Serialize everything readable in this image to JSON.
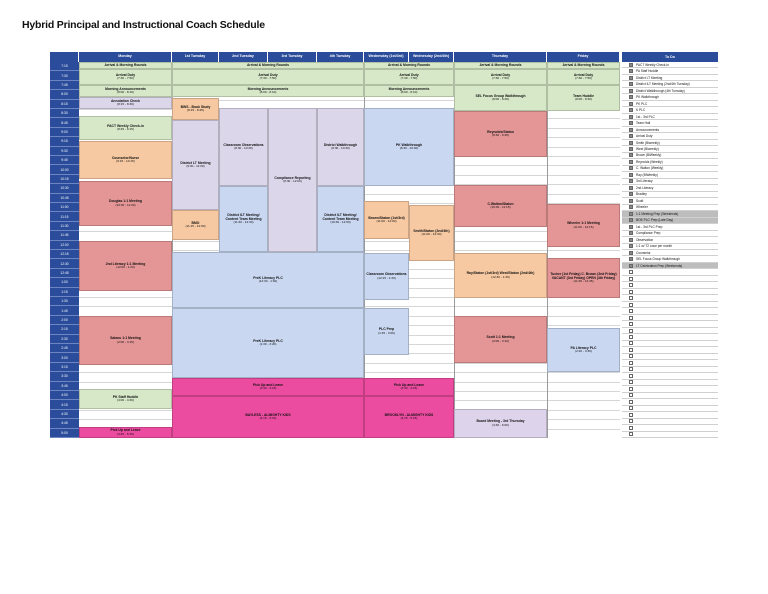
{
  "title": "Hybrid Principal and Instructional Coach Schedule",
  "headers": {
    "monday": "Monday",
    "tue1": "1st Tuesday",
    "tue2": "2nd Tuesday",
    "tue3": "3rd Tuesday",
    "tue4": "4th Tuesday",
    "wed1": "Wednesday (1st/3rd)",
    "wed2": "Wednesday (2nd/4th)",
    "thursday": "Thursday",
    "friday": "Friday"
  },
  "times": [
    "7:15",
    "7:30",
    "7:45",
    "8:00",
    "8:15",
    "8:30",
    "8:45",
    "9:00",
    "9:15",
    "9:30",
    "9:45",
    "10:00",
    "10:15",
    "10:30",
    "10:45",
    "11:00",
    "11:15",
    "11:30",
    "11:45",
    "12:00",
    "12:15",
    "12:30",
    "12:45",
    "1:00",
    "1:15",
    "1:30",
    "1:45",
    "2:00",
    "2:15",
    "2:30",
    "2:45",
    "3:00",
    "3:15",
    "3:30",
    "3:45",
    "4:00",
    "4:15",
    "4:30",
    "4:45",
    "5:00"
  ],
  "blocks": {
    "mon_arrival_rounds": {
      "t": "Arrival & Morning Rounds",
      "s": ""
    },
    "mon_arrival_duty": {
      "t": "Arrival Duty",
      "s": "(7:30 - 7:50)"
    },
    "mon_morning_ann": {
      "t": "Morning Announcements",
      "s": "(8:00 - 8:10)"
    },
    "mon_annotation": {
      "t": "Annotation Check",
      "s": "(8:15 - 8:30)"
    },
    "mon_plct": {
      "t": "PACT Weekly Check-in",
      "s": "(8:45 - 9:15)"
    },
    "mon_counselor": {
      "t": "Counselor/Nurse",
      "s": "(9:15 - 10:15)"
    },
    "mon_douglas": {
      "t": "Douglas 1:1 Meeting",
      "s": "(10:30 - 11:30)"
    },
    "mon_2nd_literacy": {
      "t": "2nd Literacy 1:1 Meeting",
      "s": "(12:00 - 1:20)"
    },
    "mon_salanu": {
      "t": "Salanu 1:1 Meeting",
      "s": "(2:00 - 3:15)"
    },
    "mon_pk_staff": {
      "t": "PK Staff Huddle",
      "s": "(4:00 - 4:30)"
    },
    "mon_pickup": {
      "t": "Pick Up and Leave",
      "s": "(4:45 - 5:15)"
    },
    "tue_arrival_rounds": {
      "t": "Arrival & Morning Rounds",
      "s": ""
    },
    "tue_arrival_duty": {
      "t": "Arrival Duty",
      "s": "(7:30 - 7:50)"
    },
    "tue_morning_ann": {
      "t": "Morning Announcements",
      "s": "(8:00 - 8:10)"
    },
    "tue_bws": {
      "t": "BWS - Book Study",
      "s": "(8:15 - 8:45)"
    },
    "tue_district_lt": {
      "t": "District LT Meeting",
      "s": "(9:00 - 11:00)"
    },
    "tue_bmo": {
      "t": "BMO",
      "s": "(11:15 - 12:00)"
    },
    "tue_class_obs": {
      "t": "Classroom Observations",
      "s": "(8:30 - 10:30)"
    },
    "tue_dist_ilt": {
      "t": "District ILT Meeting/ Content Team Meeting",
      "s": "(11:30 - 12:30)"
    },
    "tue_compliance": {
      "t": "Compliance Reporting",
      "s": "(8:30 - 12:00)"
    },
    "tue_dist_walk": {
      "t": "District Walkthrough",
      "s": "(8:30 - 10:30)"
    },
    "tue_dist_ilt2": {
      "t": "District ILT Meeting/ Content Team Meeting",
      "s": "(10:30 - 12:00)"
    },
    "tue_prek_plc1": {
      "t": "PreK Literacy PLC",
      "s": "(12:30 - 1:30)"
    },
    "tue_prek_plc2": {
      "t": "PreK Literacy PLC",
      "s": "(1:30 - 3:20)"
    },
    "tue_pickup": {
      "t": "Pick Up and Leave",
      "s": "(3:40 - 4:15)"
    },
    "tue_bayless": {
      "t": "BAYLESS - ALMIGHTY KIDS",
      "s": "(4:15 - 5:15)"
    },
    "wed_arrival_rounds": {
      "t": "Arrival & Morning Rounds",
      "s": ""
    },
    "wed_arrival_duty": {
      "t": "Arrival Duty",
      "s": "(7:30 - 7:50)"
    },
    "wed_morning_ann": {
      "t": "Morning Announcements",
      "s": "(8:00 - 8:10)"
    },
    "wed_pk_walk": {
      "t": "PK Walkthrough",
      "s": "(8:30 - 10:30)"
    },
    "wed_brown1": {
      "t": "Brown/Staton (1st/3rd)",
      "s": "(11:00 - 12:00)"
    },
    "wed_smith": {
      "t": "Smith/Staton (2nd/4th)",
      "s": "(11:00 - 12:30)"
    },
    "wed_class_obs": {
      "t": "Classroom Observations",
      "s": "(12:15 - 1:30)"
    },
    "wed_plc_prep": {
      "t": "PLC Prep",
      "s": "(1:45 - 3:00)"
    },
    "wed_pickup": {
      "t": "Pick Up and Leave",
      "s": "(3:40 - 4:15)"
    },
    "wed_brooklyn": {
      "t": "BROOKLYN - ALMIGHTY KIDS",
      "s": "(4:15 - 5:15)"
    },
    "thu_arrival_rounds": {
      "t": "Arrival & Morning Rounds",
      "s": ""
    },
    "thu_arrival_duty": {
      "t": "Arrival Duty",
      "s": "(7:30 - 7:50)"
    },
    "thu_sel_focus": {
      "t": "SEL Focus Group Walkthrough",
      "s": "(8:00 - 8:30)"
    },
    "thu_reynolds": {
      "t": "Reynolds/Staton",
      "s": "(8:30 - 9:45)"
    },
    "thu_c_walton": {
      "t": "C.Walton/Staton",
      "s": "(10:30 - 11:15)"
    },
    "thu_ray": {
      "t": "Ray/Staton (1st/3rd) West/Staton (2nd/4th)",
      "s": "(12:30 - 1:30)"
    },
    "thu_scott": {
      "t": "Scott 1:1 Meeting",
      "s": "(2:00 - 3:10)"
    },
    "thu_board": {
      "t": "Board Meeting - 3rd Thursday",
      "s": "(4:30 - 6:00)"
    },
    "fri_arrival_rounds": {
      "t": "Arrival & Morning Rounds",
      "s": ""
    },
    "fri_arrival_duty": {
      "t": "Arrival Duty",
      "s": "(7:30 - 7:50)"
    },
    "fri_team_huddle": {
      "t": "Team Huddle",
      "s": "(8:00 - 8:30)"
    },
    "fri_wheeler": {
      "t": "Wheeler 1:1 Meeting",
      "s": "(11:00 - 12:15)"
    },
    "fri_tucker": {
      "t": "Tucker (1st Friday) C. Brown (2nd Friday) VACANT (3rd Friday) OPEN (4th Friday)",
      "s": "(11:45 - 12:45)"
    },
    "fri_pa_literacy": {
      "t": "PA Literacy PLC",
      "s": "(2:20 - 3:30)"
    }
  },
  "todo": {
    "header": "To Do",
    "items": [
      {
        "text": "PACT Weekly Check-in",
        "done": true,
        "hl": false
      },
      {
        "text": "PA Staff Huddle",
        "done": true,
        "hl": false
      },
      {
        "text": "District LT Meeting",
        "done": true,
        "hl": false
      },
      {
        "text": "District ILT Meeting (2nd/4th Tuesday)",
        "done": true,
        "hl": false
      },
      {
        "text": "District Walkthrough (4th Tuesday)",
        "done": true,
        "hl": false
      },
      {
        "text": "PK Walkthrough",
        "done": true,
        "hl": false
      },
      {
        "text": "PK PLC",
        "done": true,
        "hl": false
      },
      {
        "text": "K PLC",
        "done": true,
        "hl": false
      },
      {
        "text": "1st - 3rd PLC",
        "done": true,
        "hl": false
      },
      {
        "text": "Team Hall",
        "done": true,
        "hl": false
      },
      {
        "text": "Announcements",
        "done": true,
        "hl": false
      },
      {
        "text": "Arrival Duty",
        "done": true,
        "hl": false
      },
      {
        "text": "Smith (Biweekly)",
        "done": true,
        "hl": false
      },
      {
        "text": "West (Biweekly)",
        "done": true,
        "hl": false
      },
      {
        "text": "Brown (BiWeekly)",
        "done": true,
        "hl": false
      },
      {
        "text": "Reynolds (Weekly)",
        "done": true,
        "hl": false
      },
      {
        "text": "C. Walton (Weekly)",
        "done": true,
        "hl": false
      },
      {
        "text": "Ray (BiWeekly)",
        "done": true,
        "hl": false
      },
      {
        "text": "3rd Literacy",
        "done": true,
        "hl": false
      },
      {
        "text": "2nd Literacy",
        "done": true,
        "hl": false
      },
      {
        "text": "Bradley",
        "done": true,
        "hl": false
      },
      {
        "text": "Scott",
        "done": true,
        "hl": false
      },
      {
        "text": "Wheeler",
        "done": true,
        "hl": false
      },
      {
        "text": "1:1 Meeting Prep (Weekends)",
        "done": true,
        "hl": true
      },
      {
        "text": "BOE PLC Prep (Late Day)",
        "done": true,
        "hl": true
      },
      {
        "text": "1st - 3rd PLC Prep",
        "done": true,
        "hl": false
      },
      {
        "text": "Compliance Prep",
        "done": true,
        "hl": false
      },
      {
        "text": "Observation",
        "done": true,
        "hl": false
      },
      {
        "text": "1:1 w/ T2 once per month",
        "done": true,
        "hl": false
      },
      {
        "text": "Counselor",
        "done": true,
        "hl": false
      },
      {
        "text": "SEL Focus Group Walkthrough",
        "done": true,
        "hl": false
      },
      {
        "text": "LT Celebration Prep (Weekends)",
        "done": true,
        "hl": true
      },
      {
        "text": "",
        "done": false,
        "hl": false
      },
      {
        "text": "",
        "done": false,
        "hl": false
      },
      {
        "text": "",
        "done": false,
        "hl": false
      },
      {
        "text": "",
        "done": false,
        "hl": false
      },
      {
        "text": "",
        "done": false,
        "hl": false
      },
      {
        "text": "",
        "done": false,
        "hl": false
      },
      {
        "text": "",
        "done": false,
        "hl": false
      },
      {
        "text": "",
        "done": false,
        "hl": false
      },
      {
        "text": "",
        "done": false,
        "hl": false
      },
      {
        "text": "",
        "done": false,
        "hl": false
      },
      {
        "text": "",
        "done": false,
        "hl": false
      },
      {
        "text": "",
        "done": false,
        "hl": false
      },
      {
        "text": "",
        "done": false,
        "hl": false
      },
      {
        "text": "",
        "done": false,
        "hl": false
      },
      {
        "text": "",
        "done": false,
        "hl": false
      },
      {
        "text": "",
        "done": false,
        "hl": false
      },
      {
        "text": "",
        "done": false,
        "hl": false
      },
      {
        "text": "",
        "done": false,
        "hl": false
      },
      {
        "text": "",
        "done": false,
        "hl": false
      },
      {
        "text": "",
        "done": false,
        "hl": false
      },
      {
        "text": "",
        "done": false,
        "hl": false
      },
      {
        "text": "",
        "done": false,
        "hl": false
      },
      {
        "text": "",
        "done": false,
        "hl": false
      },
      {
        "text": "",
        "done": false,
        "hl": false
      },
      {
        "text": "",
        "done": false,
        "hl": false
      },
      {
        "text": "",
        "done": false,
        "hl": false
      }
    ]
  },
  "colors": {
    "header": "#2a4c9a",
    "green": "#d7e8c8",
    "purple": "#dcd6ea",
    "blue": "#c9d7f1",
    "orange": "#f7c9a2",
    "red": "#e49595",
    "magenta": "#ec4ca0"
  }
}
